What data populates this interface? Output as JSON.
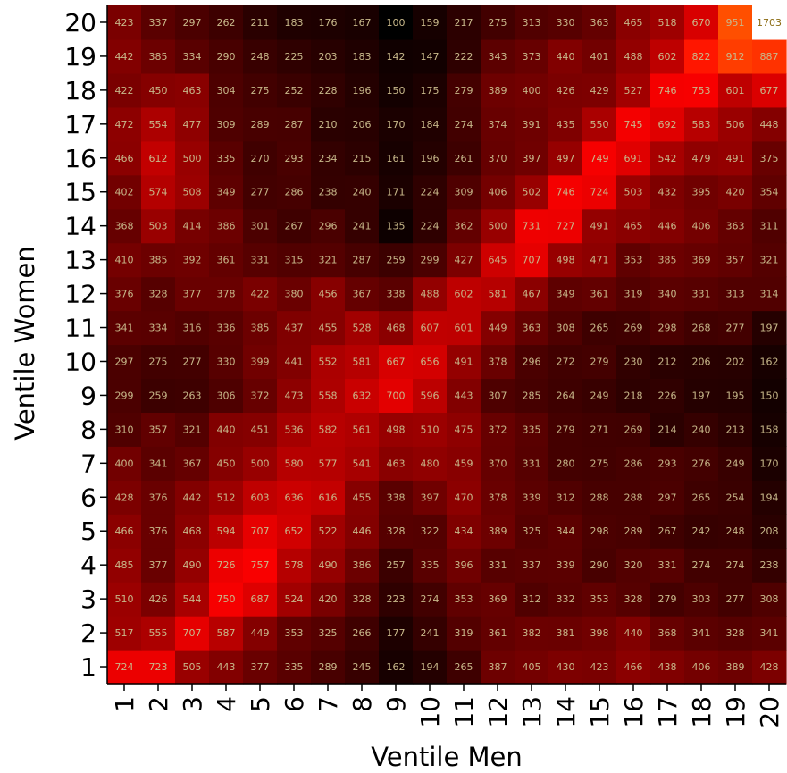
{
  "chart_data": {
    "type": "heatmap",
    "title": "",
    "xlabel": "Ventile Men",
    "ylabel": "Ventile Women",
    "x_categories": [
      "1",
      "2",
      "3",
      "4",
      "5",
      "6",
      "7",
      "8",
      "9",
      "10",
      "11",
      "12",
      "13",
      "14",
      "15",
      "16",
      "17",
      "18",
      "19",
      "20"
    ],
    "y_categories": [
      "1",
      "2",
      "3",
      "4",
      "5",
      "6",
      "7",
      "8",
      "9",
      "10",
      "11",
      "12",
      "13",
      "14",
      "15",
      "16",
      "17",
      "18",
      "19",
      "20"
    ],
    "colormap": "hot",
    "color_range": [
      100,
      1703
    ],
    "grid": false,
    "values": [
      [
        724,
        723,
        505,
        443,
        377,
        335,
        289,
        245,
        162,
        194,
        265,
        387,
        405,
        430,
        423,
        466,
        438,
        406,
        389,
        428
      ],
      [
        517,
        555,
        707,
        587,
        449,
        353,
        325,
        266,
        177,
        241,
        319,
        361,
        382,
        381,
        398,
        440,
        368,
        341,
        328,
        341
      ],
      [
        510,
        426,
        544,
        750,
        687,
        524,
        420,
        328,
        223,
        274,
        353,
        369,
        312,
        332,
        353,
        328,
        279,
        303,
        277,
        308
      ],
      [
        485,
        377,
        490,
        726,
        757,
        578,
        490,
        386,
        257,
        335,
        396,
        331,
        337,
        339,
        290,
        320,
        331,
        274,
        274,
        238
      ],
      [
        466,
        376,
        468,
        594,
        707,
        652,
        522,
        446,
        328,
        322,
        434,
        389,
        325,
        344,
        298,
        289,
        267,
        242,
        248,
        208
      ],
      [
        428,
        376,
        442,
        512,
        603,
        636,
        616,
        455,
        338,
        397,
        470,
        378,
        339,
        312,
        288,
        288,
        297,
        265,
        254,
        194
      ],
      [
        400,
        341,
        367,
        450,
        500,
        580,
        577,
        541,
        463,
        480,
        459,
        370,
        331,
        280,
        275,
        286,
        293,
        276,
        249,
        170
      ],
      [
        310,
        357,
        321,
        440,
        451,
        536,
        582,
        561,
        498,
        510,
        475,
        372,
        335,
        279,
        271,
        269,
        214,
        240,
        213,
        158
      ],
      [
        299,
        259,
        263,
        306,
        372,
        473,
        558,
        632,
        700,
        596,
        443,
        307,
        285,
        264,
        249,
        218,
        226,
        197,
        195,
        150
      ],
      [
        297,
        275,
        277,
        330,
        399,
        441,
        552,
        581,
        667,
        656,
        491,
        378,
        296,
        272,
        279,
        230,
        212,
        206,
        202,
        162
      ],
      [
        341,
        334,
        316,
        336,
        385,
        437,
        455,
        528,
        468,
        607,
        601,
        449,
        363,
        308,
        265,
        269,
        298,
        268,
        277,
        197
      ],
      [
        376,
        328,
        377,
        378,
        422,
        380,
        456,
        367,
        338,
        488,
        602,
        581,
        467,
        349,
        361,
        319,
        340,
        331,
        313,
        314
      ],
      [
        410,
        385,
        392,
        361,
        331,
        315,
        321,
        287,
        259,
        299,
        427,
        645,
        707,
        498,
        471,
        353,
        385,
        369,
        357,
        321
      ],
      [
        368,
        503,
        414,
        386,
        301,
        267,
        296,
        241,
        135,
        224,
        362,
        500,
        731,
        727,
        491,
        465,
        446,
        406,
        363,
        311
      ],
      [
        402,
        574,
        508,
        349,
        277,
        286,
        238,
        240,
        171,
        224,
        309,
        406,
        502,
        746,
        724,
        503,
        432,
        395,
        420,
        354
      ],
      [
        466,
        612,
        500,
        335,
        270,
        293,
        234,
        215,
        161,
        196,
        261,
        370,
        397,
        497,
        749,
        691,
        542,
        479,
        491,
        375
      ],
      [
        472,
        554,
        477,
        309,
        289,
        287,
        210,
        206,
        170,
        184,
        274,
        374,
        391,
        435,
        550,
        745,
        692,
        583,
        506,
        448
      ],
      [
        422,
        450,
        463,
        304,
        275,
        252,
        228,
        196,
        150,
        175,
        279,
        389,
        400,
        426,
        429,
        527,
        746,
        753,
        601,
        677
      ],
      [
        442,
        385,
        334,
        290,
        248,
        225,
        203,
        183,
        142,
        147,
        222,
        343,
        373,
        440,
        401,
        488,
        602,
        822,
        912,
        887
      ],
      [
        423,
        337,
        297,
        262,
        211,
        183,
        176,
        167,
        100,
        159,
        217,
        275,
        313,
        330,
        363,
        465,
        518,
        670,
        951,
        1703
      ]
    ]
  }
}
